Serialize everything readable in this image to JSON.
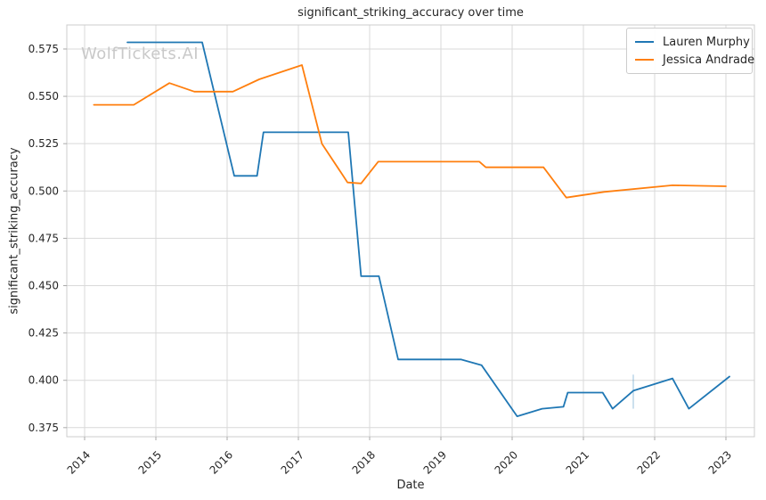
{
  "watermark": "WolfTickets.AI",
  "colors": {
    "series_blue": "#1f77b4",
    "series_orange": "#ff7f0e",
    "grid": "#d9d9d9",
    "spine": "#cccccc",
    "tick": "#aaaaaa",
    "text": "#262626",
    "watermark": "#c9c9c9"
  },
  "chart_data": {
    "type": "line",
    "title": "significant_striking_accuracy over time",
    "xlabel": "Date",
    "ylabel": "significant_striking_accuracy",
    "grid": true,
    "legend_position": "upper right",
    "xlim": [
      2013.75,
      2023.4
    ],
    "ylim": [
      0.3702,
      0.5877
    ],
    "x_ticks": [
      2014,
      2015,
      2016,
      2017,
      2018,
      2019,
      2020,
      2021,
      2022,
      2023
    ],
    "y_tick_values": [
      0.575,
      0.55,
      0.525,
      0.5,
      0.475,
      0.45,
      0.425,
      0.4,
      0.375
    ],
    "y_tick_labels": [
      "0.575",
      "0.550",
      "0.525",
      "0.500",
      "0.475",
      "0.450",
      "0.425",
      "0.400",
      "0.375"
    ],
    "series": [
      {
        "name": "Lauren Murphy",
        "color": "#1f77b4",
        "points": [
          [
            2014.6,
            0.5785
          ],
          [
            2015.65,
            0.5785
          ],
          [
            2016.1,
            0.508
          ],
          [
            2016.42,
            0.508
          ],
          [
            2016.51,
            0.531
          ],
          [
            2017.7,
            0.531
          ],
          [
            2017.88,
            0.455
          ],
          [
            2018.13,
            0.455
          ],
          [
            2018.4,
            0.411
          ],
          [
            2019.28,
            0.411
          ],
          [
            2019.57,
            0.408
          ],
          [
            2020.07,
            0.381
          ],
          [
            2020.42,
            0.385
          ],
          [
            2020.72,
            0.386
          ],
          [
            2020.78,
            0.3935
          ],
          [
            2021.27,
            0.3935
          ],
          [
            2021.41,
            0.385
          ],
          [
            2021.7,
            0.3945
          ],
          [
            2022.25,
            0.401
          ],
          [
            2022.48,
            0.385
          ],
          [
            2023.05,
            0.402
          ]
        ]
      },
      {
        "name": "Jessica Andrade",
        "color": "#ff7f0e",
        "points": [
          [
            2014.13,
            0.5455
          ],
          [
            2014.69,
            0.5455
          ],
          [
            2015.19,
            0.557
          ],
          [
            2015.54,
            0.5525
          ],
          [
            2016.08,
            0.5525
          ],
          [
            2016.45,
            0.559
          ],
          [
            2017.05,
            0.5665
          ],
          [
            2017.33,
            0.525
          ],
          [
            2017.69,
            0.5045
          ],
          [
            2017.88,
            0.504
          ],
          [
            2018.12,
            0.5155
          ],
          [
            2019.54,
            0.5155
          ],
          [
            2019.63,
            0.5125
          ],
          [
            2020.44,
            0.5125
          ],
          [
            2020.76,
            0.4965
          ],
          [
            2021.29,
            0.4995
          ],
          [
            2022.25,
            0.503
          ],
          [
            2023.0,
            0.5025
          ]
        ]
      }
    ],
    "annotations": [
      {
        "type": "faint-vertical-line",
        "x": 2021.7,
        "y1": 0.385,
        "y2": 0.403,
        "color": "rgba(31,119,180,0.3)"
      }
    ]
  }
}
